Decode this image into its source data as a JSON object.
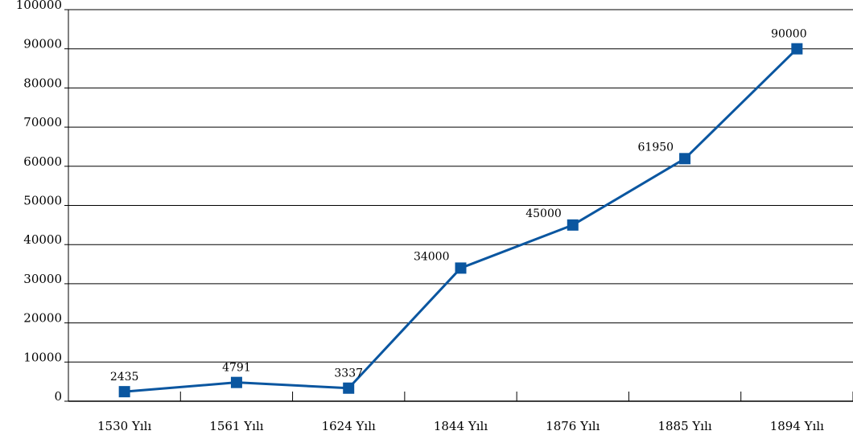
{
  "chart_data": {
    "type": "line",
    "categories": [
      "1530 Yılı",
      "1561 Yılı",
      "1624 Yılı",
      "1844 Yılı",
      "1876 Yılı",
      "1885 Yılı",
      "1894 Yılı"
    ],
    "series": [
      {
        "values": [
          2435,
          4791,
          3337,
          34000,
          45000,
          61950,
          90000
        ]
      }
    ],
    "data_labels": [
      "2435",
      "4791",
      "3337",
      "34000",
      "45000",
      "61950",
      "90000"
    ],
    "y_ticks": [
      "0",
      "10000",
      "20000",
      "30000",
      "40000",
      "50000",
      "60000",
      "70000",
      "80000",
      "90000",
      "100000"
    ],
    "ylim": [
      0,
      100000
    ],
    "grid": true,
    "legend": "none",
    "colors": {
      "line": "#0a56a0",
      "grid": "#000000"
    }
  }
}
